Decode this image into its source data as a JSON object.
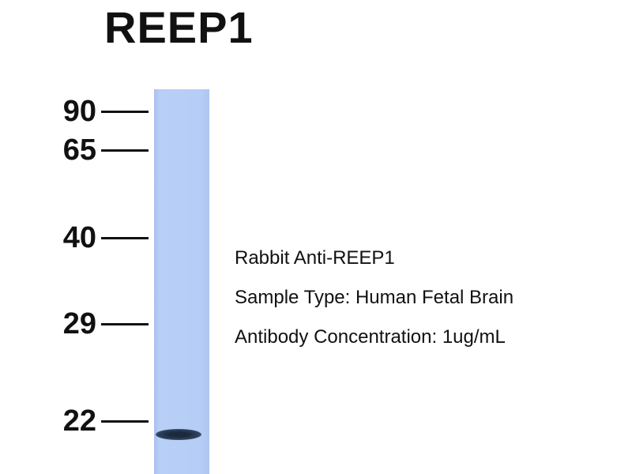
{
  "title": "REEP1",
  "markers": [
    {
      "label": "90",
      "kda": 90
    },
    {
      "label": "65",
      "kda": 65
    },
    {
      "label": "40",
      "kda": 40
    },
    {
      "label": "29",
      "kda": 29
    },
    {
      "label": "22",
      "kda": 22
    }
  ],
  "info": {
    "antibody": "Rabbit Anti-REEP1",
    "sample": "Sample Type: Human Fetal Brain",
    "concentration": "Antibody Concentration: 1ug/mL"
  },
  "colors": {
    "lane": "#b6cdf5",
    "band": "#1c2a3e"
  }
}
